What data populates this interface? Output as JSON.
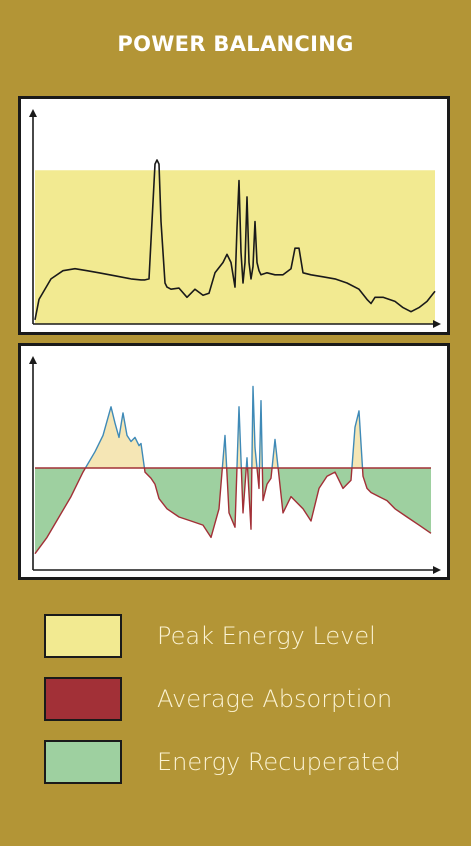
{
  "chart_data": [
    {
      "type": "line",
      "title": "POWER BALANCING",
      "xlabel": "",
      "ylabel": "",
      "grid": false,
      "peak_band": {
        "name": "Peak Energy Level",
        "y_top": 0.75
      },
      "series": [
        {
          "name": "",
          "x": [
            0,
            0.01,
            0.04,
            0.07,
            0.1,
            0.13,
            0.16,
            0.2,
            0.24,
            0.265,
            0.275,
            0.285,
            0.3,
            0.305,
            0.31,
            0.315,
            0.325,
            0.33,
            0.34,
            0.36,
            0.38,
            0.4,
            0.42,
            0.435,
            0.45,
            0.47,
            0.48,
            0.49,
            0.5,
            0.505,
            0.51,
            0.515,
            0.52,
            0.525,
            0.53,
            0.535,
            0.54,
            0.545,
            0.55,
            0.555,
            0.56,
            0.565,
            0.58,
            0.6,
            0.62,
            0.64,
            0.65,
            0.66,
            0.67,
            0.69,
            0.72,
            0.75,
            0.78,
            0.81,
            0.83,
            0.84,
            0.85,
            0.87,
            0.9,
            0.92,
            0.94,
            0.96,
            0.98,
            1.0
          ],
          "y": [
            0.02,
            0.12,
            0.22,
            0.26,
            0.27,
            0.26,
            0.25,
            0.235,
            0.22,
            0.215,
            0.215,
            0.22,
            0.78,
            0.8,
            0.78,
            0.5,
            0.2,
            0.18,
            0.17,
            0.175,
            0.13,
            0.17,
            0.14,
            0.15,
            0.25,
            0.3,
            0.34,
            0.3,
            0.18,
            0.47,
            0.7,
            0.35,
            0.2,
            0.3,
            0.62,
            0.3,
            0.22,
            0.28,
            0.5,
            0.3,
            0.26,
            0.24,
            0.25,
            0.24,
            0.24,
            0.27,
            0.37,
            0.37,
            0.25,
            0.24,
            0.23,
            0.22,
            0.2,
            0.17,
            0.12,
            0.1,
            0.13,
            0.13,
            0.11,
            0.08,
            0.06,
            0.08,
            0.11,
            0.16
          ]
        }
      ]
    },
    {
      "type": "area",
      "xlabel": "",
      "ylabel": "",
      "grid": false,
      "baseline": {
        "name": "Average Absorption",
        "y": 0.5
      },
      "series": [
        {
          "name": "",
          "x": [
            0,
            0.03,
            0.06,
            0.09,
            0.12,
            0.15,
            0.17,
            0.19,
            0.2,
            0.21,
            0.22,
            0.23,
            0.24,
            0.25,
            0.26,
            0.265,
            0.275,
            0.29,
            0.3,
            0.31,
            0.33,
            0.36,
            0.39,
            0.42,
            0.44,
            0.46,
            0.475,
            0.485,
            0.5,
            0.51,
            0.52,
            0.53,
            0.54,
            0.545,
            0.55,
            0.56,
            0.565,
            0.57,
            0.58,
            0.59,
            0.6,
            0.62,
            0.64,
            0.67,
            0.69,
            0.71,
            0.73,
            0.75,
            0.77,
            0.79,
            0.8,
            0.81,
            0.82,
            0.83,
            0.84,
            0.86,
            0.88,
            0.9,
            0.93,
            0.96,
            0.99
          ],
          "y": [
            0.08,
            0.16,
            0.26,
            0.36,
            0.48,
            0.58,
            0.66,
            0.8,
            0.72,
            0.65,
            0.77,
            0.66,
            0.63,
            0.65,
            0.61,
            0.62,
            0.48,
            0.45,
            0.42,
            0.35,
            0.3,
            0.26,
            0.24,
            0.22,
            0.16,
            0.3,
            0.66,
            0.28,
            0.21,
            0.8,
            0.28,
            0.55,
            0.2,
            0.9,
            0.6,
            0.4,
            0.83,
            0.34,
            0.42,
            0.45,
            0.64,
            0.28,
            0.36,
            0.3,
            0.24,
            0.4,
            0.46,
            0.48,
            0.4,
            0.44,
            0.7,
            0.78,
            0.46,
            0.4,
            0.38,
            0.36,
            0.34,
            0.3,
            0.26,
            0.22,
            0.18
          ]
        }
      ]
    }
  ],
  "legend": [
    {
      "label": "Peak Energy Level",
      "color": "#f2ea91"
    },
    {
      "label": "Average Absorption",
      "color": "#a23037"
    },
    {
      "label": "Energy Recuperated",
      "color": "#9ed0a0"
    }
  ],
  "colors": {
    "background": "#b39536",
    "line": "#1a1a1a",
    "spike_line": "#3f8ab7",
    "spike_fill": "#f5e6b5",
    "recuperated_fill": "#9ed0a0",
    "absorption_line": "#a23037"
  }
}
